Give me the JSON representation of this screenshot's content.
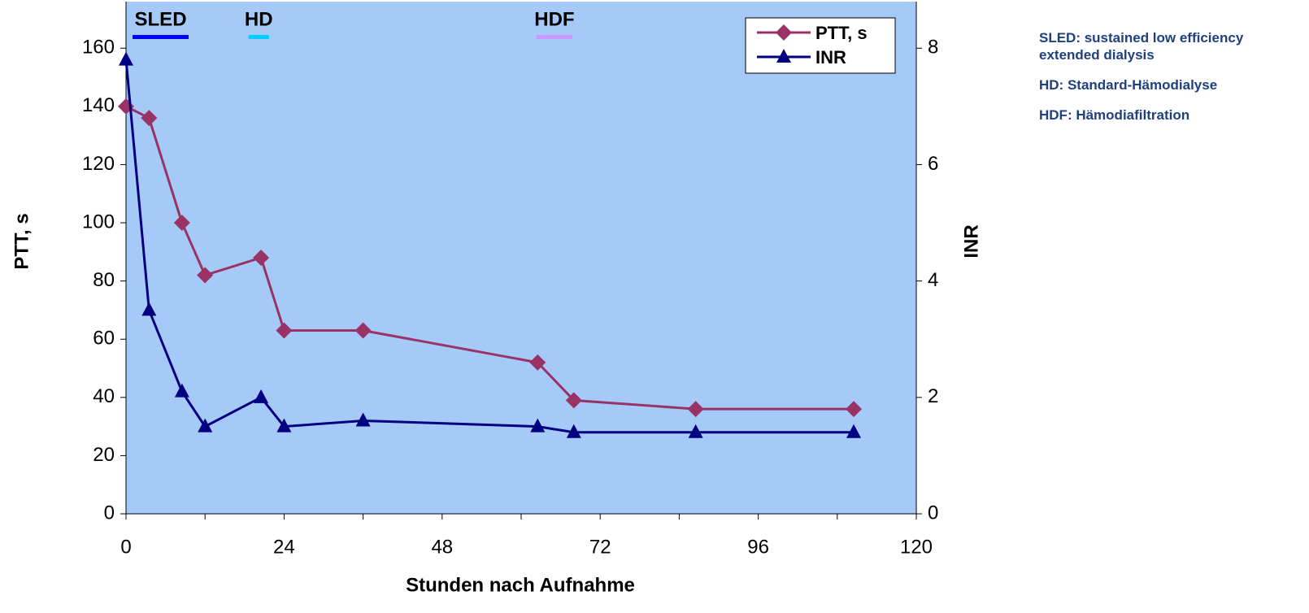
{
  "chart_data": {
    "type": "line",
    "x_label": "Stunden nach Aufnahme",
    "y_label": "PTT, s",
    "y2_label": "INR",
    "x": [
      0,
      3.5,
      8.5,
      12,
      20.5,
      24,
      36,
      62.5,
      68,
      86.5,
      110.5
    ],
    "series": [
      {
        "name": "PTT, s",
        "color": "#993366",
        "marker": "diamond",
        "values": [
          140,
          136,
          100,
          82,
          88,
          63,
          63,
          52,
          39,
          36,
          36
        ]
      },
      {
        "name": "INR",
        "color": "#000080",
        "marker": "triangle",
        "axis": "y2",
        "values": [
          7.8,
          3.5,
          2.1,
          1.5,
          2.0,
          1.5,
          1.6,
          1.5,
          1.4,
          1.4,
          1.4
        ]
      }
    ],
    "xlim": [
      0,
      120
    ],
    "xticks": [
      0,
      24,
      48,
      72,
      96,
      120
    ],
    "xminor_ticks": [
      12,
      36,
      60,
      84,
      108
    ],
    "ylim": [
      0,
      176
    ],
    "yticks": [
      0,
      20,
      40,
      60,
      80,
      100,
      120,
      140,
      160
    ],
    "y2lim": [
      0,
      8.8
    ],
    "y2ticks": [
      0,
      2,
      4,
      6,
      8
    ],
    "background": "#a6caf8",
    "legend": "top-right",
    "annotations": [
      {
        "text": "SLED",
        "x": [
          1,
          9.5
        ],
        "color": "#0000ff"
      },
      {
        "text": "HD",
        "x": [
          18.6,
          21.7
        ],
        "color": "#00ccff"
      },
      {
        "text": "HDF",
        "x": [
          62.3,
          67.8
        ],
        "color": "#cc99ff"
      }
    ],
    "notes": [
      "SLED: sustained low efficiency extended dialysis",
      "HD: Standard-Hämodialyse",
      "HDF: Hämodiafiltration"
    ]
  }
}
